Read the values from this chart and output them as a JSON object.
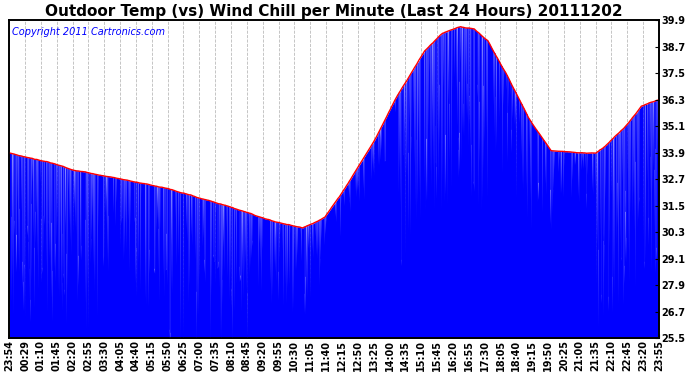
{
  "title": "Outdoor Temp (vs) Wind Chill per Minute (Last 24 Hours) 20111202",
  "copyright": "Copyright 2011 Cartronics.com",
  "yticks": [
    39.9,
    38.7,
    37.5,
    36.3,
    35.1,
    33.9,
    32.7,
    31.5,
    30.3,
    29.1,
    27.9,
    26.7,
    25.5
  ],
  "ymin": 25.5,
  "ymax": 39.9,
  "outdoor_color": "red",
  "windchill_color": "blue",
  "background_color": "white",
  "grid_color": "#bbbbbb",
  "title_fontsize": 11,
  "copyright_fontsize": 7,
  "tick_fontsize": 7,
  "x_labels": [
    "23:54",
    "00:29",
    "01:10",
    "01:45",
    "02:20",
    "02:55",
    "03:30",
    "04:05",
    "04:40",
    "05:15",
    "05:50",
    "06:25",
    "07:00",
    "07:35",
    "08:10",
    "08:45",
    "09:20",
    "09:55",
    "10:30",
    "11:05",
    "11:40",
    "12:15",
    "12:50",
    "13:25",
    "14:00",
    "14:35",
    "15:10",
    "15:45",
    "16:20",
    "16:55",
    "17:30",
    "18:05",
    "18:40",
    "19:15",
    "19:50",
    "20:25",
    "21:00",
    "21:35",
    "22:10",
    "22:45",
    "23:20",
    "23:55"
  ],
  "outdoor_xp": [
    0,
    80,
    150,
    250,
    350,
    450,
    530,
    580,
    650,
    700,
    750,
    810,
    860,
    920,
    960,
    1000,
    1030,
    1060,
    1100,
    1150,
    1200,
    1250,
    1300,
    1320,
    1360,
    1400,
    1440
  ],
  "outdoor_yp": [
    33.9,
    33.5,
    33.1,
    32.7,
    32.3,
    31.7,
    31.2,
    30.8,
    30.5,
    31.0,
    32.5,
    34.5,
    36.5,
    38.5,
    39.3,
    39.6,
    39.5,
    39.0,
    37.5,
    35.5,
    34.0,
    33.9,
    33.9,
    34.2,
    35.0,
    36.0,
    36.3
  ],
  "wc_drop_seed": 42,
  "wc_drop_prob_zones": [
    [
      0,
      200,
      0.35,
      2.0,
      7.5
    ],
    [
      200,
      350,
      0.25,
      1.5,
      6.0
    ],
    [
      350,
      530,
      0.3,
      2.0,
      7.0
    ],
    [
      530,
      700,
      0.2,
      1.0,
      4.0
    ],
    [
      700,
      860,
      0.1,
      0.5,
      2.0
    ],
    [
      860,
      1060,
      0.35,
      2.0,
      8.0
    ],
    [
      1060,
      1200,
      0.2,
      1.0,
      5.0
    ],
    [
      1200,
      1300,
      0.15,
      0.5,
      3.0
    ],
    [
      1300,
      1440,
      0.35,
      2.0,
      8.0
    ]
  ]
}
